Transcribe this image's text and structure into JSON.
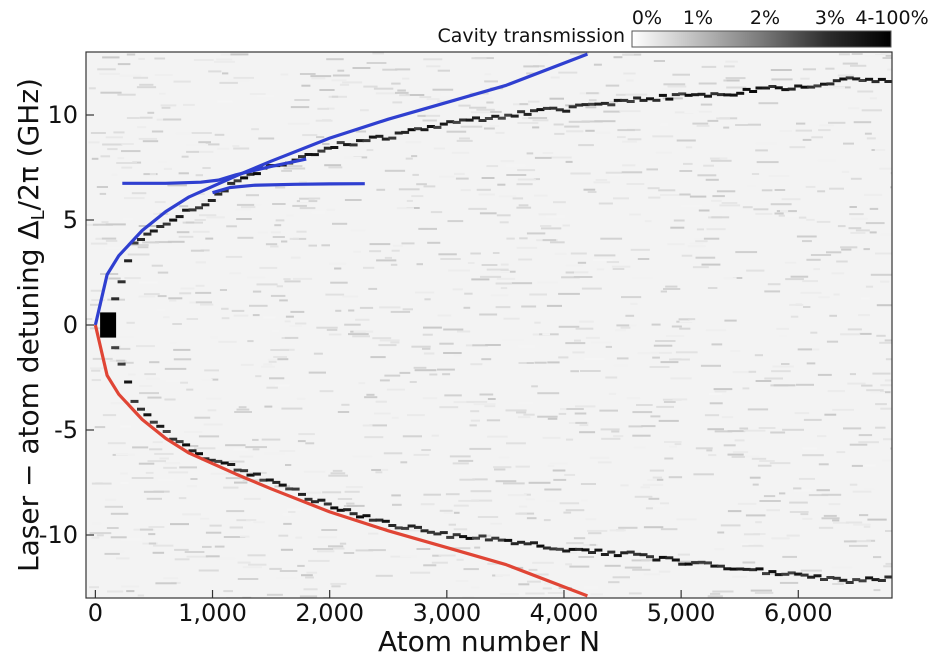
{
  "chart_data": {
    "type": "heatmap",
    "title": "",
    "xlabel": "Atom number N",
    "ylabel": "Laser − atom detuning ΔL/2π (GHz)",
    "ylabel_parts": {
      "before": "Laser − atom detuning Δ",
      "subscript": "L",
      "after": "/2π (GHz)"
    },
    "xlim": [
      -80,
      6800
    ],
    "ylim": [
      -13,
      13
    ],
    "xticks": [
      0,
      1000,
      2000,
      3000,
      4000,
      5000,
      6000
    ],
    "xtick_labels": [
      "0",
      "1,000",
      "2,000",
      "3,000",
      "4,000",
      "5,000",
      "6,000"
    ],
    "yticks": [
      10,
      5,
      0,
      -5,
      -10
    ],
    "ytick_labels": [
      "10",
      "5",
      "0",
      "-5",
      "-10"
    ],
    "grid": false,
    "colorbar": {
      "label": "Cavity transmission",
      "tick_labels": [
        "0%",
        "1%",
        "2%",
        "3%",
        "4-100%"
      ]
    },
    "series": [
      {
        "color": "#2f3fd0",
        "points": [
          [
            0,
            0
          ],
          [
            100,
            2.4
          ],
          [
            200,
            3.3
          ],
          [
            400,
            4.5
          ],
          [
            600,
            5.4
          ],
          [
            800,
            6.1
          ],
          [
            1000,
            6.6
          ],
          [
            1200,
            7.1
          ],
          [
            1500,
            7.8
          ],
          [
            2000,
            8.9
          ],
          [
            2500,
            9.8
          ],
          [
            3000,
            10.6
          ],
          [
            3500,
            11.4
          ],
          [
            4200,
            12.9
          ]
        ]
      },
      {
        "color": "#2f3fd0",
        "points": [
          [
            230,
            6.75
          ],
          [
            600,
            6.75
          ],
          [
            900,
            6.8
          ],
          [
            1050,
            6.9
          ],
          [
            1200,
            7.15
          ],
          [
            1500,
            7.55
          ],
          [
            1800,
            7.9
          ]
        ]
      },
      {
        "color": "#2f3fd0",
        "points": [
          [
            1000,
            6.3
          ],
          [
            1150,
            6.55
          ],
          [
            1350,
            6.65
          ],
          [
            1700,
            6.7
          ],
          [
            2000,
            6.72
          ],
          [
            2300,
            6.73
          ]
        ]
      },
      {
        "color": "#e04535",
        "points": [
          [
            0,
            0
          ],
          [
            100,
            -2.4
          ],
          [
            200,
            -3.3
          ],
          [
            400,
            -4.5
          ],
          [
            600,
            -5.4
          ],
          [
            800,
            -6.1
          ],
          [
            1000,
            -6.6
          ],
          [
            1200,
            -7.1
          ],
          [
            1500,
            -7.8
          ],
          [
            2000,
            -8.9
          ],
          [
            2500,
            -9.8
          ],
          [
            3000,
            -10.6
          ],
          [
            3500,
            -11.4
          ],
          [
            4200,
            -12.9
          ]
        ]
      }
    ],
    "transmission_peaks": [
      {
        "branch": "upper",
        "points": [
          [
            80,
            0.3
          ],
          [
            300,
            4.0
          ],
          [
            600,
            5.0
          ],
          [
            900,
            5.8
          ],
          [
            1200,
            7.0
          ],
          [
            1500,
            7.6
          ],
          [
            2000,
            8.5
          ],
          [
            2500,
            9.0
          ],
          [
            3000,
            9.6
          ],
          [
            3500,
            10.0
          ],
          [
            4000,
            10.3
          ],
          [
            4500,
            10.7
          ],
          [
            5000,
            10.9
          ],
          [
            5500,
            11.1
          ],
          [
            6000,
            11.4
          ],
          [
            6500,
            11.7
          ],
          [
            6750,
            11.6
          ]
        ]
      },
      {
        "branch": "lower",
        "points": [
          [
            80,
            -0.3
          ],
          [
            300,
            -3.6
          ],
          [
            600,
            -5.3
          ],
          [
            900,
            -6.3
          ],
          [
            1200,
            -6.9
          ],
          [
            1500,
            -7.5
          ],
          [
            2000,
            -8.7
          ],
          [
            2500,
            -9.5
          ],
          [
            3000,
            -10.0
          ],
          [
            3500,
            -10.3
          ],
          [
            4000,
            -10.7
          ],
          [
            4500,
            -10.9
          ],
          [
            5000,
            -11.3
          ],
          [
            5500,
            -11.6
          ],
          [
            6000,
            -11.9
          ],
          [
            6500,
            -12.2
          ],
          [
            6750,
            -12.0
          ]
        ]
      }
    ]
  }
}
